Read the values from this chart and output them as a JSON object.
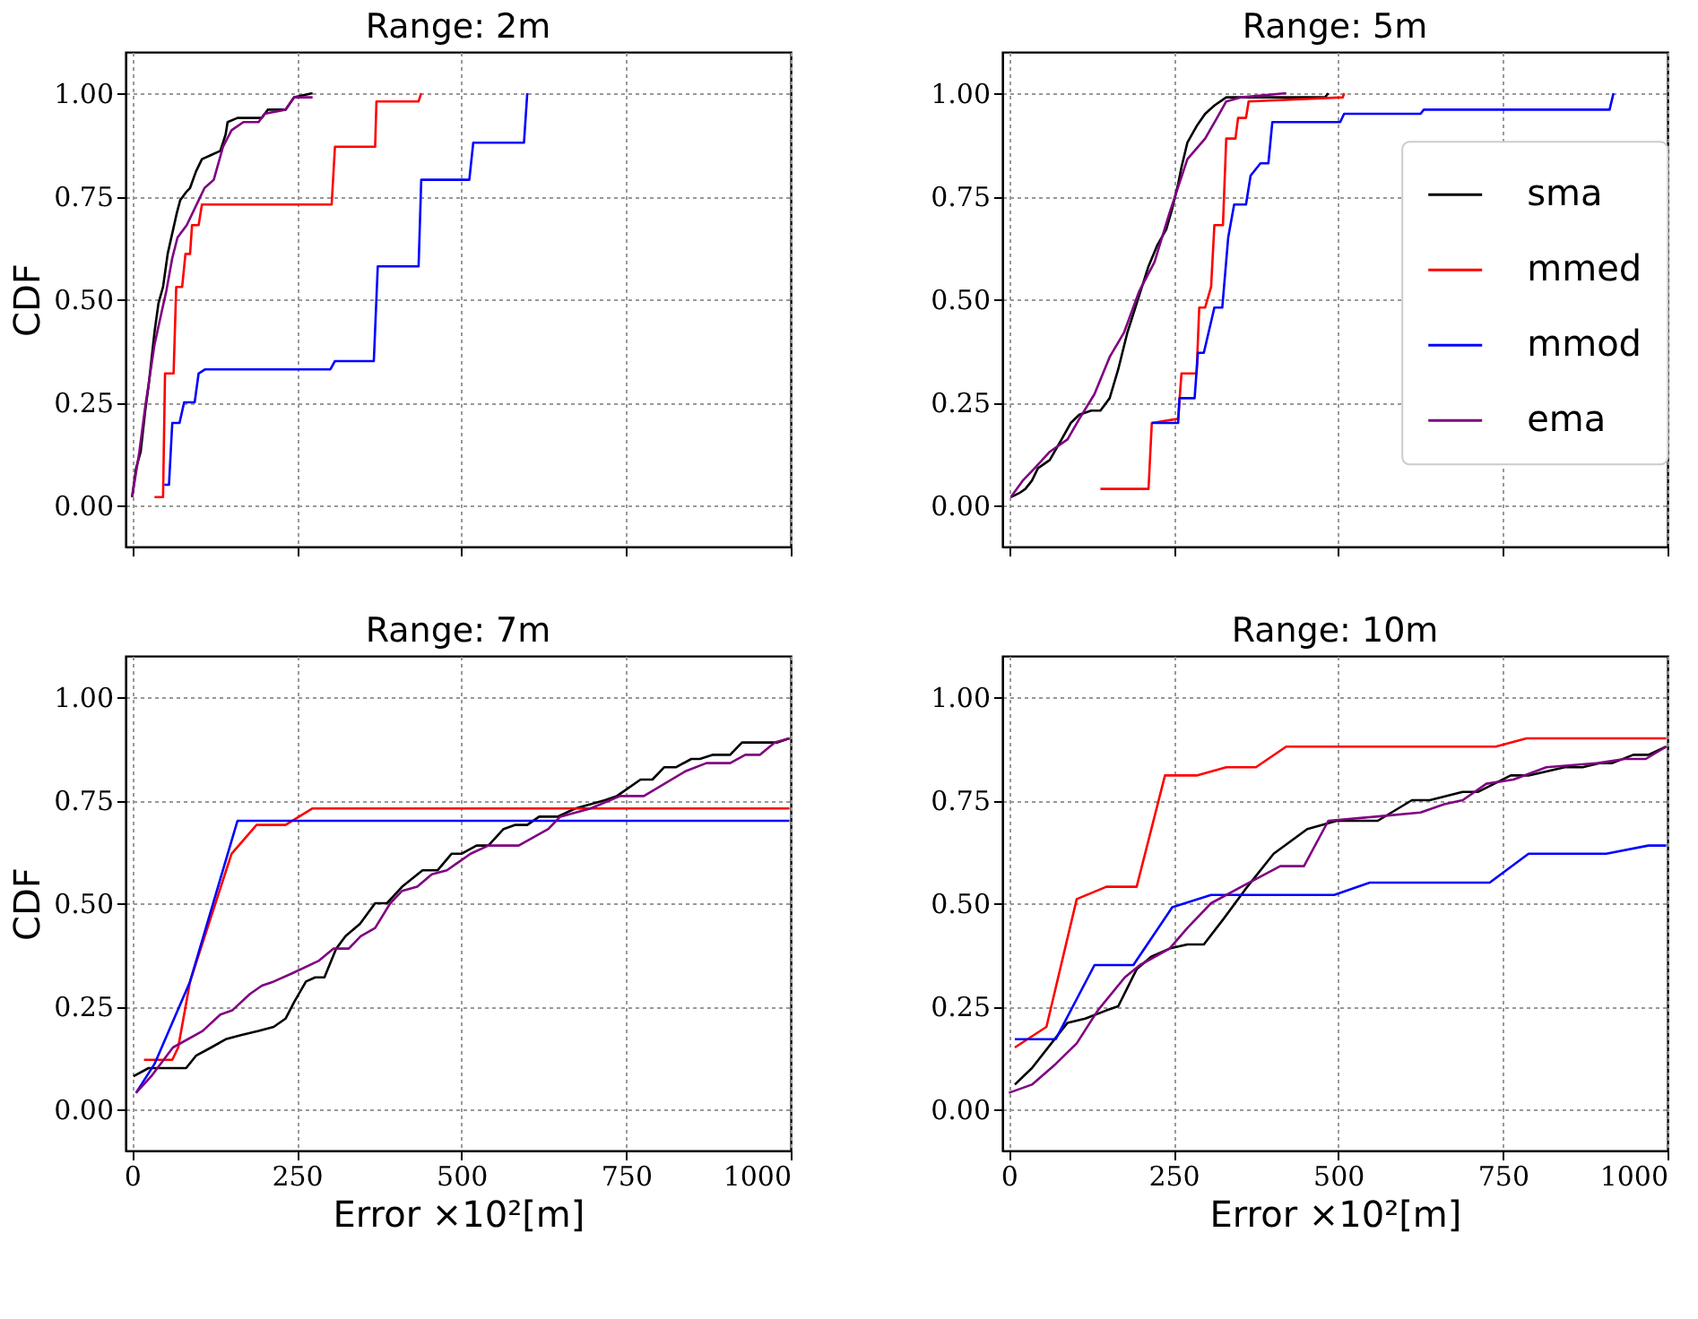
{
  "chart_data": [
    {
      "type": "line",
      "title": "Range:  2m",
      "ylabel": "CDF",
      "xlim": [
        -10,
        1000
      ],
      "ylim": [
        -0.1,
        1.1
      ],
      "xticks": [
        0,
        250,
        500,
        750,
        1000
      ],
      "yticks": [
        {
          "value": 0,
          "label": "0.00"
        },
        {
          "value": 0.25,
          "label": "0.25"
        },
        {
          "value": 0.5,
          "label": "0.50"
        },
        {
          "value": 0.75,
          "label": "0.75"
        },
        {
          "value": 1,
          "label": "1.00"
        }
      ],
      "grid": true,
      "legend": false,
      "tick_labels": "y",
      "series": [
        {
          "color": "#000000",
          "x": [
            0,
            6,
            13,
            20,
            25,
            34,
            40,
            47,
            54,
            61,
            68,
            73,
            82,
            88,
            97,
            106,
            120,
            134,
            142,
            145,
            160,
            197,
            206,
            233,
            246,
            274
          ],
          "values": [
            0.02,
            0.09,
            0.13,
            0.23,
            0.29,
            0.42,
            0.49,
            0.53,
            0.61,
            0.66,
            0.71,
            0.74,
            0.76,
            0.77,
            0.81,
            0.84,
            0.85,
            0.86,
            0.9,
            0.93,
            0.94,
            0.94,
            0.96,
            0.96,
            0.99,
            1.0
          ]
        },
        {
          "color": "#ff0000",
          "x": [
            34,
            47,
            50,
            63,
            67,
            76,
            81,
            88,
            91,
            101,
            106,
            303,
            308,
            369,
            371,
            435,
            439
          ],
          "values": [
            0.02,
            0.02,
            0.32,
            0.32,
            0.53,
            0.53,
            0.61,
            0.61,
            0.68,
            0.68,
            0.73,
            0.73,
            0.87,
            0.87,
            0.98,
            0.98,
            1.0
          ]
        },
        {
          "color": "#0000ff",
          "x": [
            49,
            56,
            61,
            72,
            79,
            95,
            101,
            111,
            301,
            308,
            367,
            373,
            435,
            439,
            512,
            518,
            595,
            600
          ],
          "values": [
            0.05,
            0.05,
            0.2,
            0.2,
            0.25,
            0.25,
            0.32,
            0.33,
            0.33,
            0.35,
            0.35,
            0.58,
            0.58,
            0.79,
            0.79,
            0.88,
            0.88,
            1.0
          ]
        },
        {
          "color": "#800080",
          "x": [
            0,
            11,
            20,
            34,
            45,
            52,
            61,
            69,
            83,
            101,
            110,
            124,
            138,
            151,
            169,
            192,
            201,
            233,
            246,
            274
          ],
          "values": [
            0.02,
            0.13,
            0.24,
            0.39,
            0.47,
            0.52,
            0.6,
            0.65,
            0.68,
            0.74,
            0.77,
            0.79,
            0.87,
            0.91,
            0.93,
            0.93,
            0.95,
            0.96,
            0.99,
            0.99
          ]
        }
      ]
    },
    {
      "type": "line",
      "title": "Range:  5m",
      "xlim": [
        -10,
        1000
      ],
      "ylim": [
        -0.1,
        1.1
      ],
      "xticks": [
        0,
        250,
        500,
        750,
        1000
      ],
      "yticks": [
        {
          "value": 0,
          "label": "0.00"
        },
        {
          "value": 0.25,
          "label": "0.25"
        },
        {
          "value": 0.5,
          "label": "0.50"
        },
        {
          "value": 0.75,
          "label": "0.75"
        },
        {
          "value": 1,
          "label": "1.00"
        }
      ],
      "grid": true,
      "legend": "right",
      "tick_labels": "y",
      "series": [
        {
          "name": "sma",
          "color": "#000000",
          "x": [
            3,
            16,
            25,
            35,
            44,
            62,
            80,
            94,
            107,
            125,
            139,
            153,
            166,
            180,
            198,
            212,
            225,
            239,
            248,
            257,
            262,
            271,
            285,
            298,
            312,
            330,
            344,
            480,
            485
          ],
          "values": [
            0.02,
            0.03,
            0.04,
            0.06,
            0.09,
            0.11,
            0.16,
            0.2,
            0.22,
            0.23,
            0.23,
            0.26,
            0.33,
            0.42,
            0.51,
            0.58,
            0.63,
            0.67,
            0.72,
            0.78,
            0.82,
            0.88,
            0.92,
            0.95,
            0.97,
            0.99,
            0.99,
            0.99,
            1.0
          ]
        },
        {
          "name": "mmed",
          "color": "#ff0000",
          "x": [
            139,
            212,
            217,
            257,
            262,
            285,
            289,
            298,
            307,
            312,
            325,
            330,
            344,
            348,
            360,
            364,
            507,
            509
          ],
          "values": [
            0.04,
            0.04,
            0.2,
            0.21,
            0.32,
            0.32,
            0.48,
            0.48,
            0.53,
            0.68,
            0.68,
            0.89,
            0.89,
            0.94,
            0.94,
            0.98,
            0.99,
            1.0
          ]
        },
        {
          "name": "mmod",
          "color": "#0000ff",
          "x": [
            217,
            257,
            259,
            282,
            287,
            296,
            312,
            324,
            333,
            342,
            360,
            367,
            382,
            394,
            400,
            503,
            509,
            625,
            630,
            912,
            918
          ],
          "values": [
            0.2,
            0.2,
            0.26,
            0.26,
            0.37,
            0.37,
            0.48,
            0.48,
            0.65,
            0.73,
            0.73,
            0.8,
            0.83,
            0.83,
            0.93,
            0.93,
            0.95,
            0.95,
            0.96,
            0.96,
            1.0
          ]
        },
        {
          "name": "ema",
          "color": "#800080",
          "x": [
            3,
            21,
            39,
            62,
            89,
            107,
            130,
            153,
            175,
            198,
            221,
            244,
            271,
            298,
            316,
            330,
            353,
            421
          ],
          "values": [
            0.02,
            0.06,
            0.09,
            0.13,
            0.16,
            0.21,
            0.27,
            0.36,
            0.42,
            0.52,
            0.59,
            0.71,
            0.84,
            0.89,
            0.94,
            0.98,
            0.99,
            1.0
          ]
        }
      ]
    },
    {
      "type": "line",
      "title": "Range:  7m",
      "xlabel": "Error ×10²[m]",
      "ylabel": "CDF",
      "xlim": [
        -10,
        1000
      ],
      "ylim": [
        -0.1,
        1.1
      ],
      "xticks": [
        0,
        250,
        500,
        750,
        1000
      ],
      "yticks": [
        {
          "value": 0,
          "label": "0.00"
        },
        {
          "value": 0.25,
          "label": "0.25"
        },
        {
          "value": 0.5,
          "label": "0.50"
        },
        {
          "value": 0.75,
          "label": "0.75"
        },
        {
          "value": 1,
          "label": "1.00"
        }
      ],
      "grid": true,
      "legend": false,
      "series": [
        {
          "color": "#000000",
          "x": [
            2,
            25,
            47,
            82,
            97,
            120,
            142,
            165,
            192,
            215,
            233,
            246,
            264,
            278,
            292,
            310,
            324,
            346,
            369,
            387,
            410,
            441,
            464,
            485,
            500,
            523,
            541,
            564,
            582,
            600,
            618,
            646,
            673,
            718,
            736,
            772,
            790,
            808,
            826,
            849,
            862,
            881,
            908,
            926,
            980,
            998
          ],
          "values": [
            0.08,
            0.1,
            0.1,
            0.1,
            0.13,
            0.15,
            0.17,
            0.18,
            0.19,
            0.2,
            0.22,
            0.26,
            0.31,
            0.32,
            0.32,
            0.39,
            0.42,
            0.45,
            0.5,
            0.5,
            0.54,
            0.58,
            0.58,
            0.62,
            0.62,
            0.64,
            0.64,
            0.68,
            0.69,
            0.69,
            0.71,
            0.71,
            0.73,
            0.75,
            0.76,
            0.8,
            0.8,
            0.83,
            0.83,
            0.85,
            0.85,
            0.86,
            0.86,
            0.89,
            0.89,
            0.9
          ]
        },
        {
          "color": "#ff0000",
          "x": [
            18,
            61,
            70,
            88,
            151,
            189,
            233,
            274,
            998
          ],
          "values": [
            0.12,
            0.12,
            0.15,
            0.31,
            0.62,
            0.69,
            0.69,
            0.73,
            0.73
          ]
        },
        {
          "color": "#0000ff",
          "x": [
            6,
            34,
            88,
            160,
            998
          ],
          "values": [
            0.04,
            0.11,
            0.31,
            0.7,
            0.7
          ]
        },
        {
          "color": "#800080",
          "x": [
            6,
            29,
            62,
            107,
            134,
            152,
            179,
            197,
            215,
            243,
            283,
            306,
            329,
            347,
            369,
            392,
            410,
            433,
            455,
            478,
            514,
            541,
            587,
            632,
            650,
            696,
            741,
            777,
            840,
            872,
            908,
            931,
            953,
            976,
            998
          ],
          "values": [
            0.04,
            0.08,
            0.15,
            0.19,
            0.23,
            0.24,
            0.28,
            0.3,
            0.31,
            0.33,
            0.36,
            0.39,
            0.39,
            0.42,
            0.44,
            0.5,
            0.53,
            0.54,
            0.57,
            0.58,
            0.62,
            0.64,
            0.64,
            0.68,
            0.71,
            0.73,
            0.76,
            0.76,
            0.82,
            0.84,
            0.84,
            0.86,
            0.86,
            0.89,
            0.9
          ]
        }
      ]
    },
    {
      "type": "line",
      "title": "Range:  10m",
      "xlabel": "Error ×10²[m]",
      "xlim": [
        -10,
        1000
      ],
      "ylim": [
        -0.1,
        1.1
      ],
      "xticks": [
        0,
        250,
        500,
        750,
        1000
      ],
      "yticks": [
        {
          "value": 0,
          "label": "0.00"
        },
        {
          "value": 0.25,
          "label": "0.25"
        },
        {
          "value": 0.5,
          "label": "0.50"
        },
        {
          "value": 0.75,
          "label": "0.75"
        },
        {
          "value": 1,
          "label": "1.00"
        }
      ],
      "grid": true,
      "legend": false,
      "series": [
        {
          "color": "#000000",
          "x": [
            9,
            35,
            89,
            116,
            148,
            166,
            194,
            216,
            244,
            271,
            296,
            325,
            362,
            402,
            453,
            498,
            560,
            612,
            639,
            689,
            712,
            762,
            789,
            844,
            871,
            898,
            916,
            948,
            971,
            998
          ],
          "values": [
            0.06,
            0.1,
            0.21,
            0.22,
            0.24,
            0.25,
            0.34,
            0.37,
            0.39,
            0.4,
            0.4,
            0.46,
            0.54,
            0.62,
            0.68,
            0.7,
            0.7,
            0.75,
            0.75,
            0.77,
            0.77,
            0.81,
            0.81,
            0.83,
            0.83,
            0.84,
            0.84,
            0.86,
            0.86,
            0.88
          ]
        },
        {
          "color": "#ff0000",
          "x": [
            9,
            57,
            103,
            148,
            194,
            237,
            285,
            330,
            375,
            421,
            739,
            786,
            998
          ],
          "values": [
            0.15,
            0.2,
            0.51,
            0.54,
            0.54,
            0.81,
            0.81,
            0.83,
            0.83,
            0.88,
            0.88,
            0.9,
            0.9
          ]
        },
        {
          "color": "#0000ff",
          "x": [
            9,
            71,
            130,
            189,
            248,
            307,
            494,
            548,
            730,
            789,
            907,
            971,
            998
          ],
          "values": [
            0.17,
            0.17,
            0.35,
            0.35,
            0.49,
            0.52,
            0.52,
            0.55,
            0.55,
            0.62,
            0.62,
            0.64,
            0.64
          ]
        },
        {
          "color": "#800080",
          "x": [
            0,
            35,
            71,
            103,
            135,
            176,
            199,
            244,
            271,
            307,
            353,
            412,
            448,
            485,
            557,
            625,
            661,
            689,
            725,
            766,
            816,
            894,
            935,
            967,
            998
          ],
          "values": [
            0.04,
            0.06,
            0.11,
            0.16,
            0.24,
            0.32,
            0.35,
            0.39,
            0.44,
            0.5,
            0.54,
            0.59,
            0.59,
            0.7,
            0.71,
            0.72,
            0.74,
            0.75,
            0.79,
            0.8,
            0.83,
            0.84,
            0.85,
            0.85,
            0.88
          ]
        }
      ]
    }
  ]
}
